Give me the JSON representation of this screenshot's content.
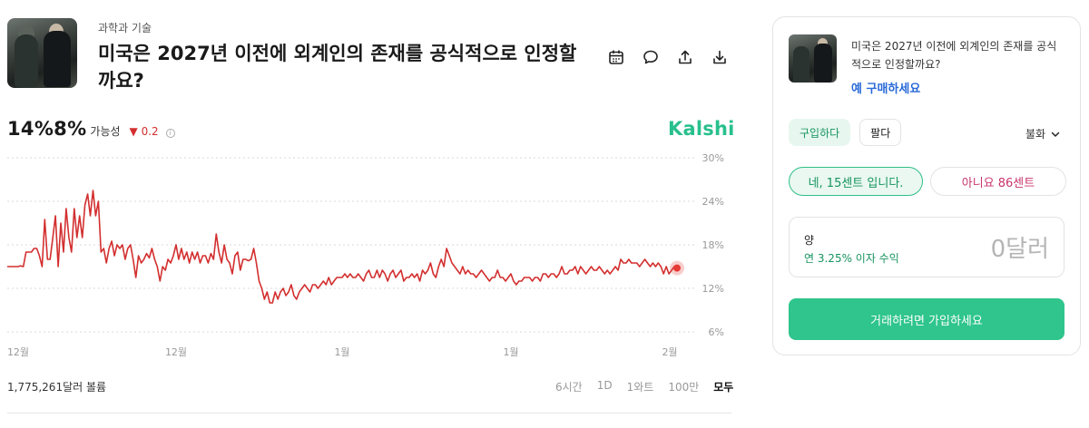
{
  "header": {
    "category": "과학과 기술",
    "title": "미국은 2027년 이전에 외계인의 존재를 공식적으로 인정할까요?",
    "thumbnail_icon": "market-thumbnail-image",
    "actions": [
      {
        "name": "calendar-icon"
      },
      {
        "name": "comment-icon"
      },
      {
        "name": "share-icon"
      },
      {
        "name": "download-icon"
      }
    ]
  },
  "probability": {
    "value": "14%8%",
    "label": "가능성",
    "delta": "0.2",
    "delta_direction": "down",
    "delta_color": "#d32f2f"
  },
  "brand": {
    "name": "Kalshi",
    "color": "#28c08c"
  },
  "chart_data": {
    "type": "line",
    "color": "#d32f2f",
    "grid": "horizontal-dotted",
    "y_axis_side": "right",
    "y_ticks": [
      30,
      24,
      18,
      12,
      6
    ],
    "y_tick_labels": [
      "30%",
      "24%",
      "18%",
      "12%",
      "6%"
    ],
    "ylim": [
      6,
      30
    ],
    "x_tick_labels": [
      "12월",
      "12월",
      "1월",
      "1월",
      "2월"
    ],
    "series": [
      {
        "values": [
          15.0,
          15.0,
          15.0,
          15.0,
          15.0,
          15.1,
          15.0,
          17.0,
          17.0,
          17.0,
          17.5,
          17.5,
          16.5,
          15.0,
          21.5,
          16.0,
          16.0,
          19.0,
          22.0,
          15.0,
          21.0,
          17.0,
          23.0,
          19.0,
          17.0,
          23.0,
          19.0,
          22.0,
          19.0,
          23.5,
          25.0,
          22.0,
          25.5,
          22.0,
          24.0,
          17.0,
          17.5,
          15.5,
          17.5,
          18.5,
          16.5,
          18.0,
          17.5,
          18.0,
          16.0,
          17.5,
          18.0,
          16.0,
          13.5,
          16.5,
          15.5,
          16.0,
          16.8,
          16.2,
          17.5,
          16.0,
          15.0,
          13.0,
          15.0,
          14.5,
          16.0,
          15.5,
          16.5,
          18.0,
          16.0,
          17.5,
          16.0,
          17.0,
          15.5,
          17.0,
          16.0,
          17.0,
          15.5,
          16.5,
          16.5,
          15.5,
          16.8,
          16.0,
          19.5,
          17.0,
          15.5,
          18.0,
          16.0,
          15.5,
          14.0,
          16.5,
          17.0,
          14.5,
          16.0,
          16.0,
          15.8,
          16.0,
          17.5,
          15.5,
          13.0,
          12.0,
          10.5,
          11.5,
          10.0,
          10.0,
          11.5,
          10.5,
          11.5,
          12.0,
          11.0,
          11.5,
          12.5,
          11.0,
          10.5,
          11.5,
          12.0,
          12.5,
          12.0,
          11.5,
          12.5,
          12.5,
          12.0,
          12.5,
          13.0,
          12.5,
          13.5,
          12.5,
          13.0,
          13.5,
          13.5,
          13.5,
          14.0,
          13.5,
          14.0,
          13.5,
          13.5,
          14.0,
          13.5,
          13.0,
          14.0,
          14.5,
          13.5,
          13.5,
          14.5,
          13.5,
          14.5,
          14.0,
          13.0,
          14.0,
          14.5,
          13.5,
          14.0,
          14.5,
          13.0,
          13.5,
          13.5,
          14.0,
          13.5,
          14.0,
          13.0,
          14.5,
          14.0,
          14.5,
          15.5,
          14.0,
          13.5,
          15.0,
          16.0,
          15.0,
          17.5,
          16.5,
          15.5,
          15.0,
          14.5,
          14.0,
          15.0,
          14.0,
          14.5,
          14.0,
          14.0,
          13.5,
          14.0,
          14.5,
          14.0,
          13.5,
          13.0,
          13.5,
          13.5,
          14.5,
          13.5,
          13.5,
          13.0,
          13.5,
          14.0,
          13.0,
          12.5,
          13.0,
          13.0,
          13.5,
          13.5,
          13.5,
          13.0,
          13.5,
          13.5,
          13.0,
          14.0,
          14.0,
          13.5,
          14.0,
          14.0,
          13.5,
          14.0,
          15.0,
          14.0,
          14.0,
          14.5,
          14.5,
          15.0,
          14.0,
          15.0,
          14.5,
          14.0,
          14.5,
          15.0,
          14.5,
          14.5,
          15.0,
          14.5,
          14.0,
          14.5,
          14.0,
          14.5,
          15.0,
          14.5,
          16.0,
          15.5,
          15.5,
          16.0,
          15.5,
          15.5,
          15.5,
          15.0,
          15.5,
          16.0,
          15.5,
          15.0,
          15.5,
          15.0,
          15.5,
          15.0,
          14.0,
          15.0,
          14.0,
          14.5,
          15.0,
          14.8
        ]
      }
    ],
    "current_point_color": "#e53935"
  },
  "footer": {
    "volume": "1,775,261달러 볼륨",
    "ranges": [
      "6시간",
      "1D",
      "1와트",
      "100만",
      "모두"
    ],
    "active_range": "모두"
  },
  "panel": {
    "title": "미국은 2027년 이전에 외계인의 존재를 공식적으로 인정할까요?",
    "buy_link": "예 구매하세요",
    "tab_buy": "구입하다",
    "tab_sell": "팔다",
    "currency": "불화",
    "yes_choice": "네,   15센트 입니다.",
    "no_choice": "아니요   86센트",
    "amount_label": "양",
    "amount_rate": "연 3.25% 이자 수익",
    "amount_value": "0달러",
    "cta": "거래하려면 가입하세요",
    "accent": "#2fc58c"
  }
}
